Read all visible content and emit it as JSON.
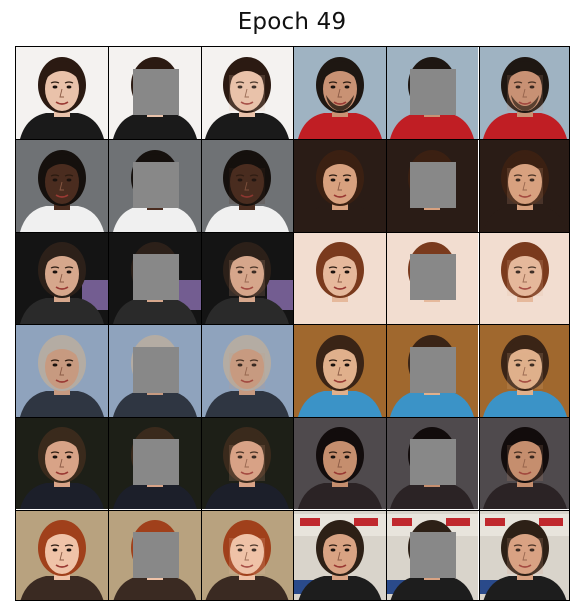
{
  "title": "Epoch 49",
  "grid": {
    "rows": 6,
    "cols": 6,
    "column_roles": [
      "original",
      "masked",
      "reconstructed",
      "original",
      "masked",
      "reconstructed"
    ],
    "mask_color": "#888888"
  },
  "samples": [
    {
      "bg": "#f4f2f0",
      "skin": "#e9c2aa",
      "hair": "#2b1a12",
      "shirt": "#1a1a1a",
      "light_bg": true
    },
    {
      "bg": "#9fb3c2",
      "skin": "#c99274",
      "hair": "#1e1712",
      "shirt": "#c01e24",
      "beard": true
    },
    {
      "bg": "#6f7275",
      "skin": "#4a2c1f",
      "hair": "#15100d",
      "shirt": "#f0f0f0"
    },
    {
      "bg": "#2a1c16",
      "skin": "#d8a17f",
      "hair": "#3b2012",
      "shirt": "#2a1c16"
    },
    {
      "bg": "#141414",
      "skin": "#d6a78c",
      "hair": "#2c2019",
      "shirt": "#2a2a2a",
      "accent": "#8b6fb0"
    },
    {
      "bg": "#f2ddd0",
      "skin": "#e6b99c",
      "hair": "#7a3a1d",
      "shirt": "#f2ddd0",
      "light_bg": true
    },
    {
      "bg": "#8fa3bd",
      "skin": "#c79a80",
      "hair": "#b4aca3",
      "shirt": "#2f3642"
    },
    {
      "bg": "#a0682e",
      "skin": "#e0b08c",
      "hair": "#3a2416",
      "shirt": "#3b93c7"
    },
    {
      "bg": "#1d1f17",
      "skin": "#d8a387",
      "hair": "#3a2a1c",
      "shirt": "#1c1f2a"
    },
    {
      "bg": "#4f4a4d",
      "skin": "#c58e6e",
      "hair": "#120c0c",
      "shirt": "#2b2325"
    },
    {
      "bg": "#b8a27f",
      "skin": "#f0c3a8",
      "hair": "#a0401b",
      "shirt": "#3a2a22"
    },
    {
      "bg": "#d9d4cb",
      "skin": "#d9a383",
      "hair": "#2d2016",
      "shirt": "#1d1d1d",
      "text_bg": true
    }
  ]
}
